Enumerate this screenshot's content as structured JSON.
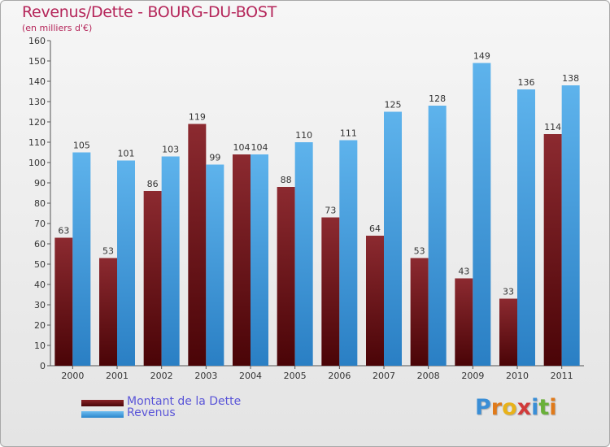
{
  "title": "Revenus/Dette - BOURG-DU-BOST",
  "subtitle": "(en milliers d'€)",
  "chart_data": {
    "type": "bar",
    "categories": [
      "2000",
      "2001",
      "2002",
      "2003",
      "2004",
      "2005",
      "2006",
      "2007",
      "2008",
      "2009",
      "2010",
      "2011"
    ],
    "series": [
      {
        "name": "Montant de la Dette",
        "color": "#7a1c20",
        "values": [
          63,
          53,
          86,
          119,
          104,
          88,
          73,
          64,
          53,
          43,
          33,
          114
        ]
      },
      {
        "name": "Revenus",
        "color": "#3f9fe0",
        "values": [
          105,
          101,
          103,
          99,
          104,
          110,
          111,
          125,
          128,
          149,
          136,
          138
        ]
      }
    ],
    "yticks": [
      0,
      10,
      20,
      30,
      40,
      50,
      60,
      70,
      80,
      90,
      100,
      110,
      120,
      130,
      140,
      150,
      160
    ],
    "ylim": [
      0,
      160
    ],
    "grid": false,
    "legend": "bottom-left"
  },
  "legend": {
    "debt_label": "Montant de la Dette",
    "revenue_label": "Revenus"
  },
  "logo": {
    "letters": [
      "P",
      "r",
      "o",
      "x",
      "i",
      "t",
      "i"
    ],
    "colors": [
      "#3a8ed6",
      "#e07a1a",
      "#e8b21a",
      "#d13a3a",
      "#3a8ed6",
      "#6ab03a",
      "#e07a1a"
    ]
  }
}
